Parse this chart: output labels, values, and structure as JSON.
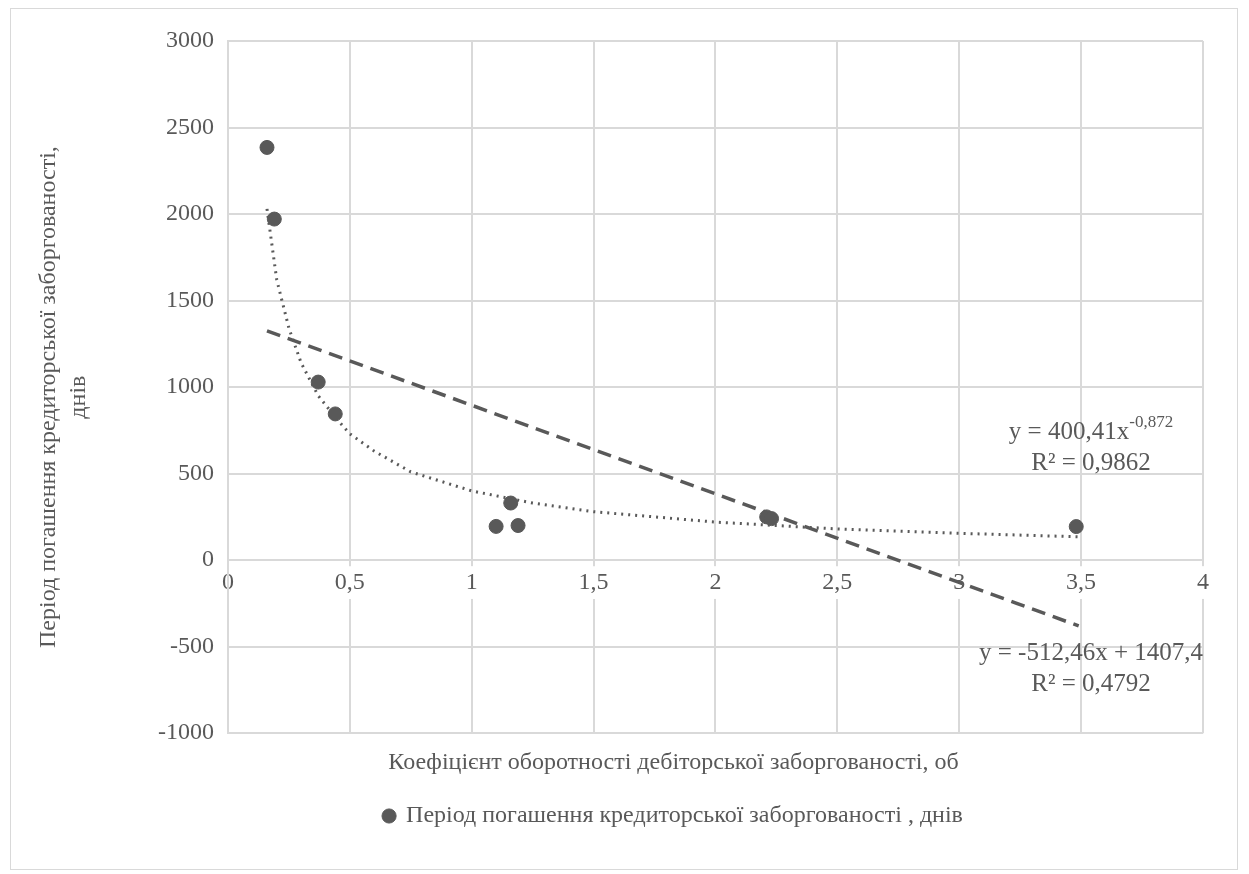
{
  "chart_data": {
    "type": "scatter",
    "xlabel": "Коефіцієнт оборотності дебіторської заборгованості, об",
    "ylabel": "Період погашення кредиторської заборгованості, днів",
    "xlim": [
      0,
      4
    ],
    "xticks": [
      0,
      {
        "value": 0.5,
        "label": "0,5"
      },
      1,
      {
        "value": 1.5,
        "label": "1,5"
      },
      2,
      {
        "value": 2.5,
        "label": "2,5"
      },
      3,
      {
        "value": 3.5,
        "label": "3,5"
      },
      4
    ],
    "ylim": [
      -1000,
      3000
    ],
    "yticks": [
      -1000,
      -500,
      0,
      500,
      1000,
      1500,
      2000,
      2500,
      3000
    ],
    "grid": true,
    "legend": "bottom",
    "marker": "circle",
    "series": [
      {
        "name": "Період погашення кредиторської заборгованості , днів",
        "color": "#595959",
        "x": [
          0.16,
          0.19,
          0.37,
          0.44,
          1.1,
          1.16,
          1.19,
          2.21,
          2.23,
          3.48
        ],
        "values": [
          2385,
          1971,
          1029,
          845,
          195,
          330,
          200,
          250,
          240,
          194
        ]
      },
      {
        "type": "line",
        "color": "#595959",
        "marker": "none",
        "line_style": "dotted",
        "x": [
          0.16,
          0.2,
          0.25,
          0.3,
          0.37,
          0.45,
          0.5,
          0.6,
          0.75,
          1,
          1.25,
          1.5,
          2,
          2.5,
          3,
          3.49
        ],
        "values": [
          2030,
          1620,
          1340,
          1140,
          950,
          810,
          730,
          630,
          510,
          400,
          330,
          280,
          220,
          180,
          155,
          135
        ]
      },
      {
        "type": "line",
        "color": "#595959",
        "marker": "none",
        "line_style": "dashed",
        "x": [
          0.16,
          3.49
        ],
        "values": [
          1325,
          -380
        ]
      }
    ],
    "annotations": [
      "y = 400,41x$^{-0,872}$",
      "R² = 0,9862",
      "y = -512,46x + 1407,4",
      "R² = 0,4792"
    ]
  }
}
